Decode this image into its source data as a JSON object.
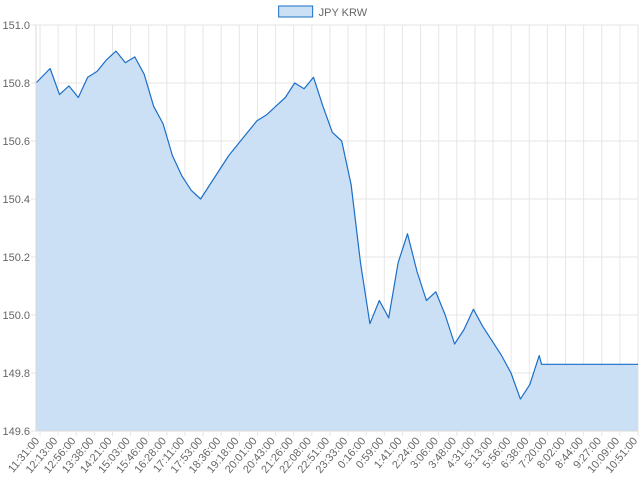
{
  "chart_data": {
    "type": "area",
    "title": "",
    "xlabel": "",
    "ylabel": "",
    "grid": true,
    "legend_position": "top-center",
    "series": [
      {
        "name": "JPY KRW",
        "color": "#1a6fc9",
        "fill": "#cce0f5",
        "points": [
          [
            0,
            150.8
          ],
          [
            6,
            150.85
          ],
          [
            10,
            150.76
          ],
          [
            14,
            150.79
          ],
          [
            18,
            150.75
          ],
          [
            22,
            150.82
          ],
          [
            26,
            150.84
          ],
          [
            30,
            150.88
          ],
          [
            34,
            150.91
          ],
          [
            38,
            150.87
          ],
          [
            42,
            150.89
          ],
          [
            46,
            150.83
          ],
          [
            50,
            150.72
          ],
          [
            54,
            150.66
          ],
          [
            58,
            150.55
          ],
          [
            62,
            150.48
          ],
          [
            66,
            150.43
          ],
          [
            70,
            150.4
          ],
          [
            74,
            150.45
          ],
          [
            78,
            150.5
          ],
          [
            82,
            150.55
          ],
          [
            86,
            150.59
          ],
          [
            90,
            150.63
          ],
          [
            94,
            150.67
          ],
          [
            98,
            150.69
          ],
          [
            102,
            150.72
          ],
          [
            106,
            150.75
          ],
          [
            110,
            150.8
          ],
          [
            114,
            150.78
          ],
          [
            118,
            150.82
          ],
          [
            122,
            150.72
          ],
          [
            126,
            150.63
          ],
          [
            130,
            150.6
          ],
          [
            134,
            150.45
          ],
          [
            138,
            150.18
          ],
          [
            142,
            149.97
          ],
          [
            146,
            150.05
          ],
          [
            150,
            149.99
          ],
          [
            154,
            150.18
          ],
          [
            158,
            150.28
          ],
          [
            162,
            150.15
          ],
          [
            166,
            150.05
          ],
          [
            170,
            150.08
          ],
          [
            174,
            150.0
          ],
          [
            178,
            149.9
          ],
          [
            182,
            149.95
          ],
          [
            186,
            150.02
          ],
          [
            190,
            149.96
          ],
          [
            194,
            149.91
          ],
          [
            198,
            149.86
          ],
          [
            202,
            149.8
          ],
          [
            206,
            149.71
          ],
          [
            210,
            149.76
          ],
          [
            214,
            149.86
          ],
          [
            215,
            149.83
          ],
          [
            256,
            149.83
          ]
        ]
      }
    ],
    "x_tick_labels": [
      "11:31:00",
      "12:13:00",
      "12:56:00",
      "13:38:00",
      "14:21:00",
      "15:03:00",
      "15:46:00",
      "16:28:00",
      "17:11:00",
      "17:53:00",
      "18:36:00",
      "19:18:00",
      "20:01:00",
      "20:43:00",
      "21:26:00",
      "22:08:00",
      "22:51:00",
      "23:33:00",
      "0:16:00",
      "0:59:00",
      "1:41:00",
      "2:24:00",
      "3:06:00",
      "3:48:00",
      "4:31:00",
      "5:13:00",
      "5:56:00",
      "6:38:00",
      "7:20:00",
      "8:02:00",
      "8:44:00",
      "9:27:00",
      "10:09:00",
      "10:51:00"
    ],
    "y_ticks": [
      149.6,
      149.8,
      150.0,
      150.2,
      150.4,
      150.6,
      150.8,
      151.0
    ],
    "y_tick_labels": [
      "149.6",
      "149.8",
      "150.0",
      "150.2",
      "150.4",
      "150.6",
      "150.8",
      "151.0"
    ],
    "ylim": [
      149.6,
      151.0
    ],
    "xlim": [
      0,
      256
    ]
  }
}
